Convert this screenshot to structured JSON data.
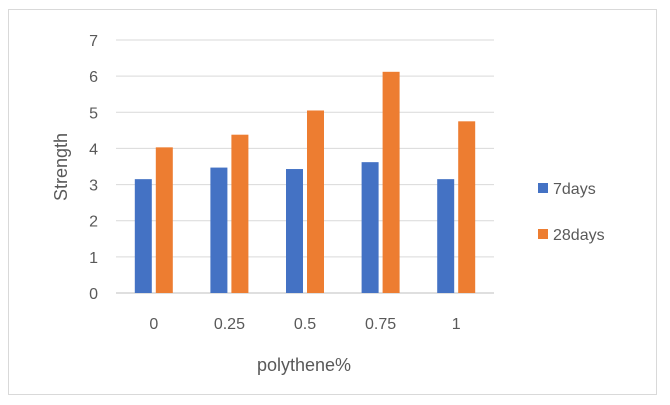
{
  "chart_data": {
    "type": "bar",
    "title": "",
    "xlabel": "polythene%",
    "ylabel": "Strength",
    "ylim": [
      0,
      7
    ],
    "yticks": [
      "0",
      "1",
      "2",
      "3",
      "4",
      "5",
      "6",
      "7"
    ],
    "grid": true,
    "legend_position": "right",
    "categories": [
      "0",
      "0.25",
      "0.5",
      "0.75",
      "1"
    ],
    "series": [
      {
        "name": "7days",
        "color": "#4472c4",
        "values": [
          3.15,
          3.47,
          3.43,
          3.62,
          3.15
        ]
      },
      {
        "name": "28days",
        "color": "#ed7d31",
        "values": [
          4.03,
          4.38,
          5.05,
          6.12,
          4.75
        ]
      }
    ]
  }
}
